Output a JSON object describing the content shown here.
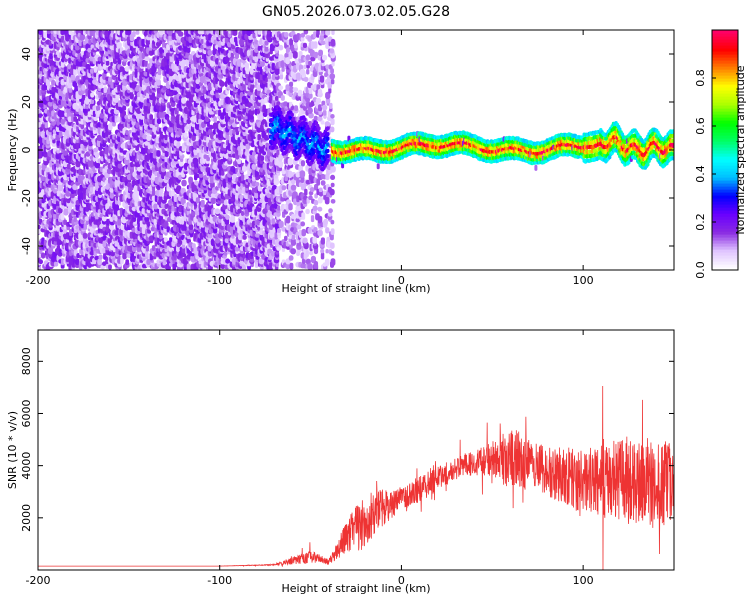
{
  "title": "GN05.2026.073.02.05.G28",
  "chart_data": [
    {
      "type": "heatmap",
      "xlabel": "Height of straight line (km)",
      "ylabel": "Frequency (Hz)",
      "xlim": [
        -200,
        150
      ],
      "ylim": [
        -50,
        50
      ],
      "xticks": [
        -200,
        -100,
        0,
        100
      ],
      "yticks": [
        -40,
        -20,
        0,
        20,
        40
      ],
      "colorbar": {
        "label": "Normalized spectral amplitude",
        "range": [
          0,
          1
        ],
        "ticks": [
          "0.0",
          "0.2",
          "0.4",
          "0.6",
          "0.8"
        ],
        "colors": [
          "#ffffff",
          "#dfc3ff",
          "#8a2be2",
          "#6a00ff",
          "#0000ff",
          "#00bfff",
          "#00ffff",
          "#00ff66",
          "#00ff00",
          "#aaff00",
          "#ffff00",
          "#ff8000",
          "#ff0000",
          "#ff0066"
        ]
      },
      "regions": [
        {
          "x": [
            -200,
            -68
          ],
          "frequency_range": [
            -50,
            50
          ],
          "amplitude": [
            0.05,
            0.2
          ],
          "pattern": "scattered noise"
        },
        {
          "x": [
            -68,
            -38
          ],
          "frequency_range": [
            -50,
            50
          ],
          "amplitude": [
            0.05,
            0.15
          ],
          "pattern": "sparse noise"
        },
        {
          "x": [
            -72,
            -40
          ],
          "frequency": 8,
          "amplitude": [
            0.2,
            0.4
          ],
          "pattern": "descending band from 10 Hz to 0 Hz"
        },
        {
          "x": [
            -38,
            150
          ],
          "frequency": 1,
          "amplitude": [
            0.4,
            1.0
          ],
          "pattern": "narrow band near 0 Hz"
        }
      ]
    },
    {
      "type": "line",
      "xlabel": "Height of straight line (km)",
      "ylabel": "SNR (10 * v/v)",
      "xlim": [
        -200,
        150
      ],
      "ylim": [
        0,
        9200
      ],
      "xticks": [
        -200,
        -100,
        0,
        100
      ],
      "yticks": [
        2000,
        4000,
        6000,
        8000
      ],
      "series": [
        {
          "color": "#ee3333",
          "x": [
            -200,
            -150,
            -100,
            -70,
            -60,
            -50,
            -45,
            -40,
            -35,
            -30,
            -25,
            -20,
            -15,
            -10,
            -5,
            0,
            5,
            10,
            15,
            20,
            25,
            30,
            35,
            40,
            45,
            50,
            55,
            60,
            65,
            70,
            75,
            80,
            85,
            90,
            95,
            100,
            105,
            110,
            115,
            120,
            125,
            130,
            135,
            140,
            145,
            150
          ],
          "y": [
            150,
            150,
            150,
            200,
            350,
            500,
            450,
            300,
            800,
            1300,
            1600,
            1800,
            2200,
            2400,
            2500,
            2700,
            2900,
            3100,
            3300,
            3500,
            3700,
            3900,
            4000,
            4100,
            4150,
            4100,
            4200,
            4300,
            4200,
            4000,
            3900,
            3800,
            3700,
            3650,
            3500,
            3450,
            3400,
            3400,
            3400,
            3500,
            3350,
            3300,
            3200,
            3300,
            3400,
            3300
          ],
          "noise_amplitude": [
            0,
            0,
            0,
            20,
            150,
            250,
            150,
            100,
            400,
            600,
            900,
            1000,
            900,
            700,
            500,
            500,
            500,
            500,
            500,
            450,
            450,
            450,
            450,
            450,
            600,
            900,
            1000,
            1100,
            1100,
            1000,
            1000,
            1000,
            1100,
            1100,
            1200,
            1300,
            1300,
            1400,
            1500,
            1600,
            1600,
            1600,
            1600,
            1700,
            1600,
            1500
          ]
        }
      ]
    }
  ]
}
